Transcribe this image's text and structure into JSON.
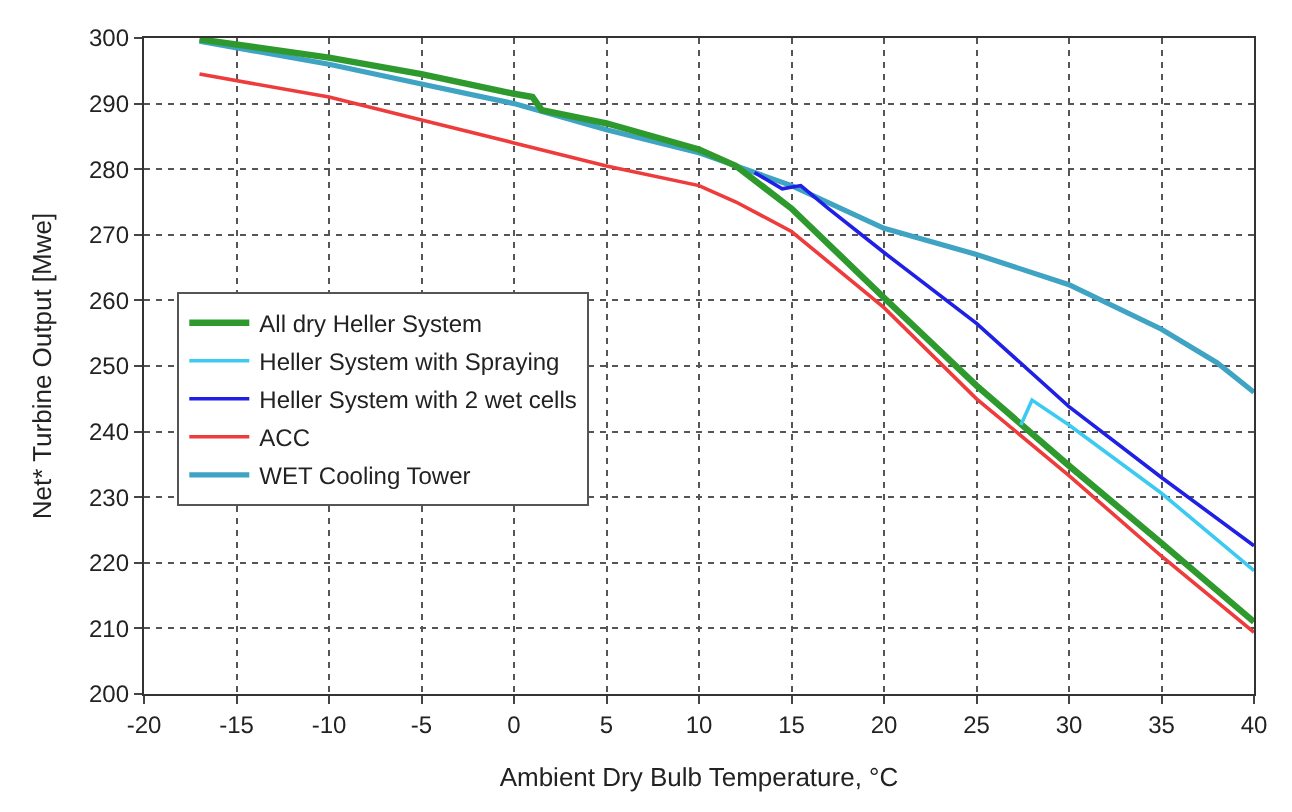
{
  "chart_data": {
    "type": "line",
    "xlabel": "Ambient Dry Bulb Temperature, °C",
    "ylabel": "Net* Turbine Output [Mwe]",
    "xlim": [
      -20,
      40
    ],
    "ylim": [
      200,
      300
    ],
    "xticks": [
      -20,
      -15,
      -10,
      -5,
      0,
      5,
      10,
      15,
      20,
      25,
      30,
      35,
      40
    ],
    "yticks": [
      200,
      210,
      220,
      230,
      240,
      250,
      260,
      270,
      280,
      290,
      300
    ],
    "grid": true,
    "legend": "left",
    "line_style": "solid",
    "marker": "none",
    "series": [
      {
        "name": "WET Cooling Tower",
        "color": "#3fa3c4",
        "x": [
          -17,
          -10,
          -5,
          0,
          5,
          10,
          12,
          15,
          20,
          25,
          30,
          35,
          38,
          40
        ],
        "values": [
          299.5,
          296,
          293,
          290,
          286,
          282.5,
          280.5,
          277.5,
          271,
          267,
          262.4,
          255.6,
          250.5,
          246
        ]
      },
      {
        "name": "All dry Heller System",
        "color": "#2e9a2e",
        "x": [
          -17,
          -10,
          -5,
          0,
          1,
          1.5,
          5,
          10,
          12,
          15,
          20,
          25,
          30,
          35,
          40
        ],
        "values": [
          299.8,
          297,
          294.5,
          291.5,
          291,
          289,
          287,
          283,
          280.5,
          274,
          260.4,
          247,
          234.8,
          223,
          211
        ]
      },
      {
        "name": "Heller System with Spraying",
        "color": "#3ccaf0",
        "x": [
          27.4,
          28,
          30,
          35,
          40
        ],
        "values": [
          241,
          244.8,
          241,
          230.6,
          218.8
        ]
      },
      {
        "name": "Heller System with 2 wet cells",
        "color": "#1f1fe6",
        "x": [
          13,
          14.5,
          15.5,
          17,
          20,
          25,
          30,
          35,
          40
        ],
        "values": [
          279.5,
          277,
          277.5,
          274,
          267.3,
          256.5,
          243.8,
          233,
          222.6
        ]
      },
      {
        "name": "ACC",
        "color": "#ee3b3b",
        "x": [
          -17,
          -10,
          -5,
          0,
          5,
          10,
          12,
          15,
          20,
          25,
          30,
          35,
          40
        ],
        "values": [
          294.5,
          291,
          287.5,
          284,
          280.5,
          277.5,
          275,
          270.5,
          258.9,
          245,
          233.3,
          221,
          209.4
        ]
      }
    ]
  }
}
